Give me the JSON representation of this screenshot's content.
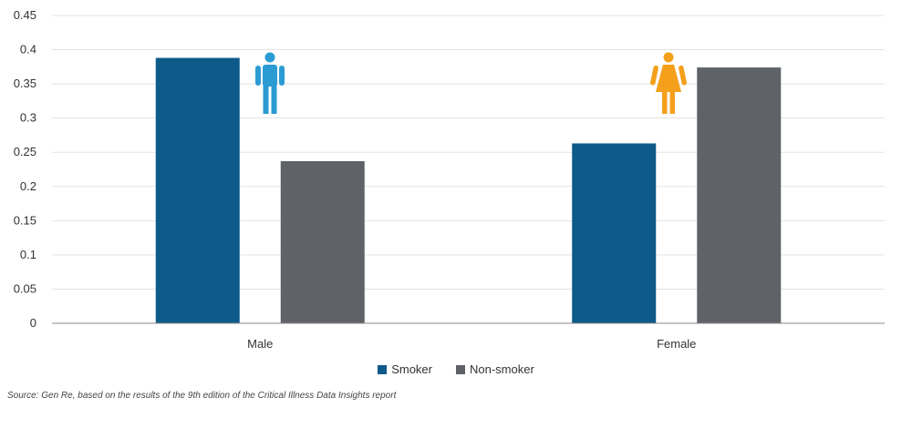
{
  "chart_data": {
    "type": "bar",
    "categories": [
      "Male",
      "Female"
    ],
    "series": [
      {
        "name": "Smoker",
        "values": [
          0.388,
          0.263
        ],
        "color": "#0e5a8a"
      },
      {
        "name": "Non-smoker",
        "values": [
          0.237,
          0.374
        ],
        "color": "#5f6368"
      }
    ],
    "ylim": [
      0,
      0.45
    ],
    "yticks": [
      "0",
      "0.05",
      "0.1",
      "0.15",
      "0.2",
      "0.25",
      "0.3",
      "0.35",
      "0.4",
      "0.45"
    ],
    "grid": true,
    "legend_position": "bottom-center",
    "icons": [
      {
        "name": "male-figure-icon",
        "color": "#2b9bd3",
        "category": "Male"
      },
      {
        "name": "female-figure-icon",
        "color": "#f5a01a",
        "category": "Female"
      }
    ]
  },
  "source_text": "Source: Gen Re, based on the results of the 9th edition of the Critical Illness Data Insights report"
}
